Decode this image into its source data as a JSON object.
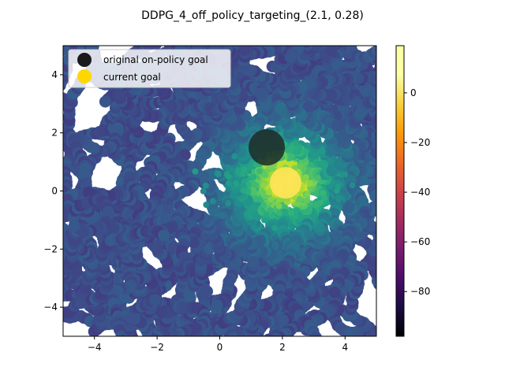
{
  "chart_data": {
    "type": "scatter",
    "title": "DDPG_4_off_policy_targeting_(2.1, 0.28)",
    "xlabel": "",
    "ylabel": "",
    "xlim": [
      -5,
      5
    ],
    "ylim": [
      -5,
      5
    ],
    "xticks": [
      -4,
      -2,
      0,
      2,
      4
    ],
    "yticks": [
      -4,
      -2,
      0,
      2,
      4
    ],
    "x_tick_labels": [
      "−4",
      "−2",
      "0",
      "2",
      "4"
    ],
    "y_tick_labels": [
      "−4",
      "−2",
      "0",
      "2",
      "4"
    ],
    "grid": false,
    "legend_position": "top-left",
    "legend": [
      {
        "label": "original on-policy goal",
        "color": "#1a1a1a"
      },
      {
        "label": "current goal",
        "color": "#ffd700"
      }
    ],
    "special_points": [
      {
        "name": "original on-policy goal",
        "x": 1.5,
        "y": 1.5,
        "color": "#1e2a26"
      },
      {
        "name": "current goal",
        "x": 2.1,
        "y": 0.28,
        "color": "#ffe45a"
      }
    ],
    "colorbar": {
      "colormap": "inferno",
      "vmin": -98,
      "vmax": 19,
      "ticks": [
        0,
        -20,
        -40,
        -60,
        -80
      ],
      "tick_labels": [
        "0",
        "−20",
        "−40",
        "−60",
        "−80"
      ]
    },
    "point_color_scale": "viridis",
    "value_field_description": "reward highest near current goal, decreasing with distance"
  }
}
